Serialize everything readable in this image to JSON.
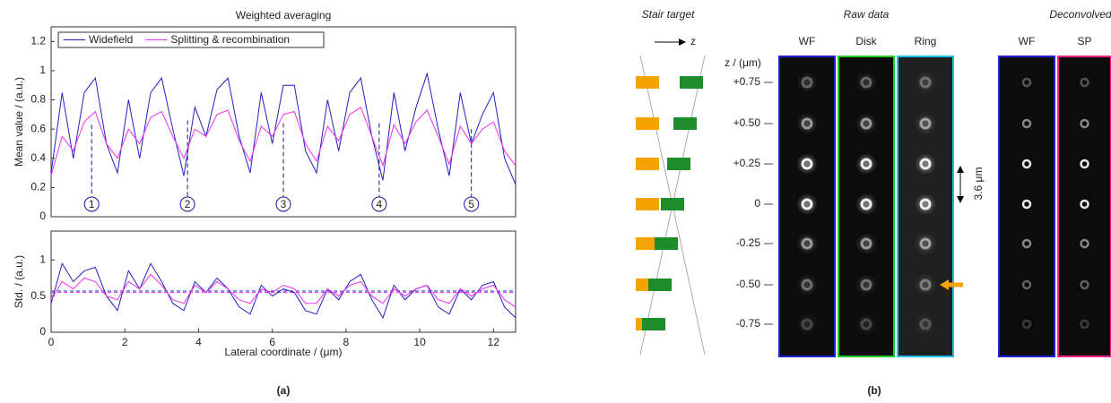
{
  "chart_data": [
    {
      "type": "line",
      "title": "Weighted averaging",
      "ylabel": "Mean value / (a.u.)",
      "x": [
        0,
        0.3,
        0.6,
        0.9,
        1.2,
        1.5,
        1.8,
        2.1,
        2.4,
        2.7,
        3,
        3.3,
        3.6,
        3.9,
        4.2,
        4.5,
        4.8,
        5.1,
        5.4,
        5.7,
        6,
        6.3,
        6.6,
        6.9,
        7.2,
        7.5,
        7.8,
        8.1,
        8.4,
        8.7,
        9,
        9.3,
        9.6,
        9.9,
        10.2,
        10.5,
        10.8,
        11.1,
        11.4,
        11.7,
        12,
        12.3,
        12.6
      ],
      "xlim": [
        0,
        12.6
      ],
      "ylim": [
        0,
        1.3
      ],
      "yticks": [
        0,
        0.2,
        0.4,
        0.6,
        0.8,
        1,
        1.2
      ],
      "legend": "upper left",
      "series": [
        {
          "name": "Widefield",
          "color": "#2020c0",
          "values": [
            0.3,
            0.85,
            0.4,
            0.85,
            0.95,
            0.5,
            0.3,
            0.8,
            0.4,
            0.85,
            0.95,
            0.6,
            0.28,
            0.75,
            0.55,
            0.87,
            0.95,
            0.55,
            0.3,
            0.85,
            0.5,
            0.9,
            0.9,
            0.45,
            0.3,
            0.8,
            0.45,
            0.85,
            0.95,
            0.55,
            0.25,
            0.85,
            0.45,
            0.75,
            0.98,
            0.6,
            0.28,
            0.85,
            0.5,
            0.7,
            0.85,
            0.4,
            0.22
          ]
        },
        {
          "name": "Splitting & recombination",
          "color": "#f030f0",
          "values": [
            0.28,
            0.55,
            0.45,
            0.65,
            0.72,
            0.5,
            0.4,
            0.6,
            0.5,
            0.68,
            0.72,
            0.55,
            0.4,
            0.6,
            0.55,
            0.7,
            0.73,
            0.52,
            0.38,
            0.62,
            0.55,
            0.7,
            0.72,
            0.5,
            0.38,
            0.62,
            0.52,
            0.7,
            0.75,
            0.55,
            0.35,
            0.63,
            0.5,
            0.65,
            0.73,
            0.55,
            0.36,
            0.62,
            0.5,
            0.6,
            0.65,
            0.45,
            0.35
          ]
        }
      ],
      "annotations": [
        {
          "text": "1",
          "x": 1.1,
          "y": 0.63
        },
        {
          "text": "2",
          "x": 3.7,
          "y": 0.66
        },
        {
          "text": "3",
          "x": 6.3,
          "y": 0.64
        },
        {
          "text": "4",
          "x": 8.9,
          "y": 0.64
        },
        {
          "text": "5",
          "x": 11.4,
          "y": 0.6
        }
      ]
    },
    {
      "type": "line",
      "ylabel": "Std. / (a.u.)",
      "xlabel": "Lateral coordinate / (μm)",
      "x": [
        0,
        0.3,
        0.6,
        0.9,
        1.2,
        1.5,
        1.8,
        2.1,
        2.4,
        2.7,
        3,
        3.3,
        3.6,
        3.9,
        4.2,
        4.5,
        4.8,
        5.1,
        5.4,
        5.7,
        6,
        6.3,
        6.6,
        6.9,
        7.2,
        7.5,
        7.8,
        8.1,
        8.4,
        8.7,
        9,
        9.3,
        9.6,
        9.9,
        10.2,
        10.5,
        10.8,
        11.1,
        11.4,
        11.7,
        12,
        12.3,
        12.6
      ],
      "xlim": [
        0,
        12.6
      ],
      "xticks": [
        0,
        2,
        4,
        6,
        8,
        10,
        12
      ],
      "ylim": [
        0,
        1.4
      ],
      "yticks": [
        0,
        0.5,
        1
      ],
      "series": [
        {
          "color": "#2020c0",
          "values": [
            0.4,
            0.95,
            0.7,
            0.85,
            0.9,
            0.5,
            0.3,
            0.85,
            0.6,
            0.95,
            0.7,
            0.4,
            0.3,
            0.7,
            0.55,
            0.75,
            0.6,
            0.35,
            0.25,
            0.65,
            0.5,
            0.6,
            0.55,
            0.3,
            0.25,
            0.6,
            0.45,
            0.7,
            0.8,
            0.45,
            0.2,
            0.65,
            0.45,
            0.6,
            0.65,
            0.35,
            0.25,
            0.6,
            0.45,
            0.65,
            0.7,
            0.35,
            0.2
          ]
        },
        {
          "color": "#f030f0",
          "values": [
            0.45,
            0.7,
            0.6,
            0.75,
            0.7,
            0.5,
            0.45,
            0.7,
            0.6,
            0.8,
            0.65,
            0.45,
            0.4,
            0.65,
            0.55,
            0.7,
            0.6,
            0.45,
            0.4,
            0.6,
            0.55,
            0.65,
            0.6,
            0.4,
            0.4,
            0.6,
            0.5,
            0.65,
            0.7,
            0.5,
            0.4,
            0.6,
            0.5,
            0.6,
            0.65,
            0.45,
            0.4,
            0.6,
            0.5,
            0.6,
            0.65,
            0.45,
            0.35
          ]
        }
      ],
      "hlines": [
        {
          "y": 0.57,
          "color": "#2020c0"
        },
        {
          "y": 0.55,
          "color": "#f030f0"
        }
      ]
    }
  ],
  "caption_a": "(a)",
  "panel_b": {
    "titles": {
      "stair": "Stair target",
      "raw": "Raw data",
      "deconv": "Deconvolved"
    },
    "z_axis": "z",
    "z_unit": "z / (μm)",
    "z_color": "#cc2222",
    "z_labels": [
      "+0.75",
      "+0.50",
      "+0.25",
      "0",
      "-0.25",
      "-0.50",
      "-0.75"
    ],
    "raw_columns": [
      {
        "label": "WF",
        "color": "#2020d8"
      },
      {
        "label": "Disk",
        "color": "#22cc22"
      },
      {
        "label": "Ring",
        "color": "#22bbee"
      }
    ],
    "deconv_columns": [
      {
        "label": "WF",
        "color": "#2020d8"
      },
      {
        "label": "SP",
        "color": "#ee2288"
      }
    ],
    "scale": "3.6 μm",
    "caption": "(b)"
  }
}
